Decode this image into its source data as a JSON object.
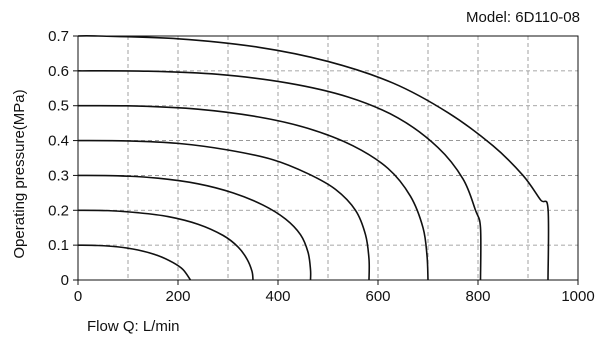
{
  "chart_data": {
    "type": "line",
    "model_label": "Model: 6D110-08",
    "xlabel": "Flow  Q: L/min",
    "ylabel": "Operating pressure(MPa)",
    "xlim": [
      0,
      1000
    ],
    "ylim": [
      0,
      0.7
    ],
    "x_ticks": [
      "0",
      "200",
      "400",
      "600",
      "800",
      "1000"
    ],
    "y_ticks": [
      "0",
      "0.1",
      "0.2",
      "0.3",
      "0.4",
      "0.5",
      "0.6",
      "0.7"
    ],
    "grid": true,
    "grid_style": "dashed",
    "series": [
      {
        "values": [
          {
            "x": 0,
            "y": 0.1
          },
          {
            "x": 40,
            "y": 0.099
          },
          {
            "x": 80,
            "y": 0.095
          },
          {
            "x": 120,
            "y": 0.086
          },
          {
            "x": 160,
            "y": 0.07
          },
          {
            "x": 190,
            "y": 0.05
          },
          {
            "x": 210,
            "y": 0.03
          },
          {
            "x": 225,
            "y": 0.0
          }
        ]
      },
      {
        "values": [
          {
            "x": 0,
            "y": 0.2
          },
          {
            "x": 60,
            "y": 0.199
          },
          {
            "x": 120,
            "y": 0.193
          },
          {
            "x": 180,
            "y": 0.182
          },
          {
            "x": 240,
            "y": 0.16
          },
          {
            "x": 290,
            "y": 0.128
          },
          {
            "x": 320,
            "y": 0.095
          },
          {
            "x": 338,
            "y": 0.06
          },
          {
            "x": 348,
            "y": 0.025
          },
          {
            "x": 350,
            "y": 0.0
          }
        ]
      },
      {
        "values": [
          {
            "x": 0,
            "y": 0.3
          },
          {
            "x": 80,
            "y": 0.299
          },
          {
            "x": 160,
            "y": 0.292
          },
          {
            "x": 240,
            "y": 0.276
          },
          {
            "x": 310,
            "y": 0.25
          },
          {
            "x": 370,
            "y": 0.215
          },
          {
            "x": 415,
            "y": 0.175
          },
          {
            "x": 445,
            "y": 0.13
          },
          {
            "x": 460,
            "y": 0.08
          },
          {
            "x": 465,
            "y": 0.03
          },
          {
            "x": 465,
            "y": 0.0
          }
        ]
      },
      {
        "values": [
          {
            "x": 0,
            "y": 0.4
          },
          {
            "x": 100,
            "y": 0.399
          },
          {
            "x": 200,
            "y": 0.392
          },
          {
            "x": 300,
            "y": 0.373
          },
          {
            "x": 390,
            "y": 0.345
          },
          {
            "x": 460,
            "y": 0.305
          },
          {
            "x": 515,
            "y": 0.26
          },
          {
            "x": 555,
            "y": 0.2
          },
          {
            "x": 575,
            "y": 0.13
          },
          {
            "x": 582,
            "y": 0.06
          },
          {
            "x": 582,
            "y": 0.0
          }
        ]
      },
      {
        "values": [
          {
            "x": 0,
            "y": 0.5
          },
          {
            "x": 120,
            "y": 0.499
          },
          {
            "x": 240,
            "y": 0.49
          },
          {
            "x": 360,
            "y": 0.468
          },
          {
            "x": 460,
            "y": 0.435
          },
          {
            "x": 550,
            "y": 0.385
          },
          {
            "x": 620,
            "y": 0.32
          },
          {
            "x": 665,
            "y": 0.24
          },
          {
            "x": 690,
            "y": 0.15
          },
          {
            "x": 698,
            "y": 0.07
          },
          {
            "x": 700,
            "y": 0.0
          }
        ]
      },
      {
        "values": [
          {
            "x": 0,
            "y": 0.6
          },
          {
            "x": 140,
            "y": 0.599
          },
          {
            "x": 280,
            "y": 0.59
          },
          {
            "x": 420,
            "y": 0.565
          },
          {
            "x": 540,
            "y": 0.525
          },
          {
            "x": 640,
            "y": 0.465
          },
          {
            "x": 720,
            "y": 0.38
          },
          {
            "x": 770,
            "y": 0.29
          },
          {
            "x": 795,
            "y": 0.2
          },
          {
            "x": 805,
            "y": 0.15
          },
          {
            "x": 805,
            "y": 0.0
          }
        ]
      },
      {
        "values": [
          {
            "x": 0,
            "y": 0.7
          },
          {
            "x": 40,
            "y": 0.7
          },
          {
            "x": 200,
            "y": 0.692
          },
          {
            "x": 360,
            "y": 0.668
          },
          {
            "x": 500,
            "y": 0.627
          },
          {
            "x": 630,
            "y": 0.565
          },
          {
            "x": 740,
            "y": 0.48
          },
          {
            "x": 830,
            "y": 0.385
          },
          {
            "x": 890,
            "y": 0.3
          },
          {
            "x": 925,
            "y": 0.23
          },
          {
            "x": 940,
            "y": 0.205
          },
          {
            "x": 940,
            "y": 0.0
          }
        ]
      }
    ]
  }
}
